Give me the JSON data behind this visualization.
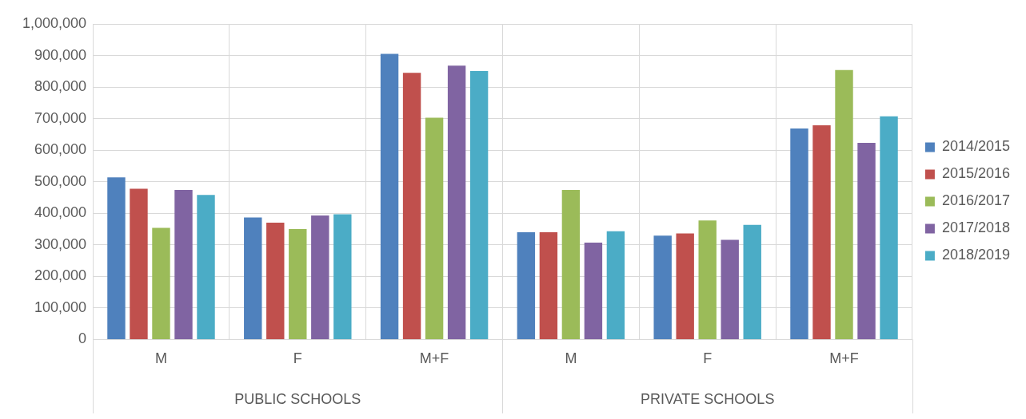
{
  "chart_data": {
    "type": "bar",
    "categories": [
      "M",
      "F",
      "M+F",
      "M",
      "F",
      "M+F"
    ],
    "series": [
      {
        "name": "2014/2015",
        "color": "#4f81bd",
        "values": [
          514000,
          387000,
          905000,
          340000,
          329000,
          669000
        ]
      },
      {
        "name": "2015/2016",
        "color": "#c0504d",
        "values": [
          478000,
          370000,
          845000,
          340000,
          336000,
          679000
        ]
      },
      {
        "name": "2016/2017",
        "color": "#9bbb59",
        "values": [
          354000,
          350000,
          703000,
          474000,
          377000,
          854000
        ]
      },
      {
        "name": "2017/2018",
        "color": "#8064a2",
        "values": [
          474000,
          393000,
          868000,
          307000,
          316000,
          623000
        ]
      },
      {
        "name": "2018/2019",
        "color": "#4bacc6",
        "values": [
          458000,
          397000,
          851000,
          343000,
          363000,
          707000
        ]
      }
    ],
    "ylim": [
      0,
      1000000
    ],
    "yticks": [
      0,
      {
        "value": 100000,
        "label": "100,000"
      },
      {
        "value": 200000,
        "label": "200,000"
      },
      {
        "value": 300000,
        "label": "300,000"
      },
      {
        "value": 400000,
        "label": "400,000"
      },
      {
        "value": 500000,
        "label": "500,000"
      },
      {
        "value": 600000,
        "label": "600,000"
      },
      {
        "value": 700000,
        "label": "700,000"
      },
      {
        "value": 800000,
        "label": "800,000"
      },
      {
        "value": 900000,
        "label": "900,000"
      },
      {
        "value": 1000000,
        "label": "1,000,000"
      }
    ],
    "grid": true,
    "legend": "right",
    "annotations": [
      "PUBLIC SCHOOLS",
      "PRIVATE SCHOOLS"
    ]
  }
}
